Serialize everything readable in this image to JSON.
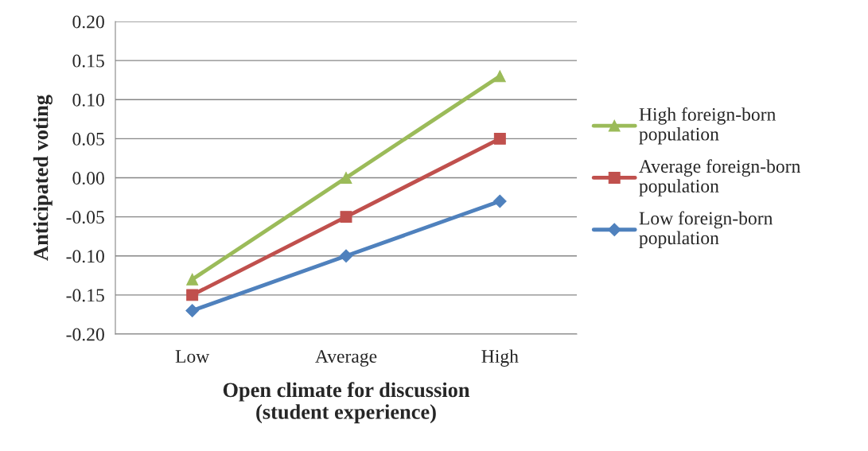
{
  "chart_data": {
    "type": "line",
    "xlabel": "Open climate for discussion\n(student experience)",
    "ylabel": "Anticipated voting",
    "categories": [
      "Low",
      "Average",
      "High"
    ],
    "series": [
      {
        "name": "High foreign-born\npopulation",
        "color": "#9bbb59",
        "marker": "triangle",
        "values": [
          -0.13,
          0.0,
          0.13
        ]
      },
      {
        "name": "Average foreign-born\npopulation",
        "color": "#c0504d",
        "marker": "square",
        "values": [
          -0.15,
          -0.05,
          0.05
        ]
      },
      {
        "name": "Low foreign-born\npopulation",
        "color": "#4f81bd",
        "marker": "diamond",
        "values": [
          -0.17,
          -0.1,
          -0.03
        ]
      }
    ],
    "ylim": [
      -0.2,
      0.2
    ],
    "yticks": [
      {
        "value": -0.2,
        "label": "-0.20"
      },
      {
        "value": -0.15,
        "label": "-0.15"
      },
      {
        "value": -0.1,
        "label": "-0.10"
      },
      {
        "value": -0.05,
        "label": "-0.05"
      },
      {
        "value": 0,
        "label": "0.00"
      },
      {
        "value": 0.05,
        "label": "0.05"
      },
      {
        "value": 0.1,
        "label": "0.10"
      },
      {
        "value": 0.15,
        "label": "0.15"
      },
      {
        "value": 0.2,
        "label": "0.20"
      }
    ],
    "grid": "y",
    "legend": "right",
    "line_style": "solid"
  }
}
